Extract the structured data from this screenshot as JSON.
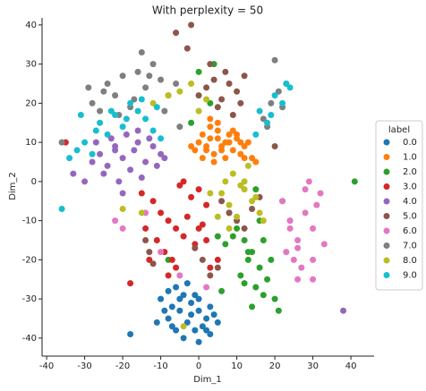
{
  "chart_data": {
    "type": "scatter",
    "title": "With perplexity = 50",
    "x_label": "Dim_1",
    "y_label": "Dim_2",
    "legend_title": "label",
    "legend_position": "right",
    "xlim": [
      -41.2,
      46.1
    ],
    "ylim": [
      -44.6,
      41.8
    ],
    "xticks": [
      -40,
      -30,
      -20,
      -10,
      0,
      10,
      20,
      30,
      40
    ],
    "yticks": [
      -40,
      -30,
      -20,
      -10,
      0,
      10,
      20,
      30,
      40
    ],
    "series": [
      {
        "name": "0.0",
        "color": "#1f77b4",
        "x": [
          -10,
          -8,
          -6,
          -4,
          -2,
          0,
          2,
          4,
          -9,
          -7,
          -5,
          -3,
          -1,
          1,
          3,
          -11,
          -6,
          -4,
          -2,
          0,
          2,
          -8,
          -5,
          -1,
          3,
          -18,
          -3,
          -7,
          5,
          0
        ],
        "values": [
          -30,
          -28,
          -27,
          -29,
          -31,
          -33,
          -35,
          -34,
          -33,
          -32,
          -30,
          -36,
          -38,
          -37,
          -32,
          -36,
          -38,
          -40,
          -34,
          -30,
          -38,
          -35,
          -33,
          -29,
          -39,
          -39,
          -26,
          -37,
          -36,
          -41
        ]
      },
      {
        "name": "1.0",
        "color": "#ff7f0e",
        "x": [
          -2,
          0,
          1,
          2,
          3,
          4,
          5,
          6,
          7,
          8,
          9,
          10,
          11,
          12,
          13,
          14,
          15,
          1,
          3,
          5,
          7,
          9,
          11,
          -1,
          2,
          4,
          6,
          8,
          10,
          12,
          3,
          5
        ],
        "values": [
          9,
          10,
          12,
          8,
          11,
          7,
          13,
          9,
          10,
          12,
          8,
          11,
          7,
          9,
          10,
          6,
          5,
          6,
          14,
          11,
          6,
          13,
          10,
          8,
          9,
          5,
          8,
          10,
          12,
          6,
          16,
          15
        ]
      },
      {
        "name": "2.0",
        "color": "#2ca02c",
        "x": [
          10,
          12,
          14,
          16,
          18,
          13,
          15,
          17,
          11,
          9,
          7,
          19,
          20,
          14,
          12,
          16,
          5,
          8,
          3,
          0,
          -2,
          4,
          21,
          22,
          41,
          15,
          17,
          13,
          6,
          -8
        ],
        "values": [
          -12,
          -15,
          -18,
          -22,
          -25,
          -20,
          -27,
          -29,
          -24,
          -14,
          -16,
          -20,
          -30,
          -32,
          -26,
          -10,
          -14,
          -8,
          20,
          28,
          15,
          30,
          -33,
          -5,
          0,
          -2,
          -15,
          -18,
          -28,
          -20
        ]
      },
      {
        "name": "3.0",
        "color": "#d62728",
        "x": [
          -12,
          -10,
          -8,
          -6,
          -4,
          -2,
          0,
          2,
          -11,
          -9,
          -7,
          -5,
          -3,
          -1,
          1,
          -14,
          -13,
          -6,
          -4,
          0,
          3,
          -35,
          -18,
          -8,
          5,
          2,
          -15
        ],
        "values": [
          -5,
          -8,
          -10,
          -12,
          -14,
          -4,
          -2,
          -6,
          -15,
          -18,
          -20,
          -1,
          -9,
          -16,
          -11,
          -12,
          -20,
          -22,
          0,
          -12,
          -22,
          10,
          -26,
          -24,
          -20,
          -15,
          -3
        ]
      },
      {
        "name": "4.0",
        "color": "#9467bd",
        "x": [
          -28,
          -26,
          -24,
          -22,
          -20,
          -18,
          -16,
          -14,
          -12,
          -10,
          -27,
          -25,
          -23,
          -21,
          -19,
          -17,
          -15,
          -13,
          -11,
          -9,
          -30,
          -20,
          -16,
          38,
          -33,
          -22
        ],
        "values": [
          5,
          7,
          4,
          8,
          6,
          3,
          10,
          5,
          9,
          7,
          10,
          2,
          11,
          0,
          12,
          8,
          1,
          11,
          4,
          6,
          0,
          -3,
          13,
          -33,
          2,
          9
        ]
      },
      {
        "name": "5.0",
        "color": "#8c564b",
        "x": [
          0,
          2,
          4,
          6,
          8,
          10,
          12,
          3,
          7,
          11,
          5,
          9,
          -14,
          -13,
          -12,
          6,
          8,
          10,
          12,
          14,
          1,
          3,
          5,
          -2,
          -6,
          20,
          -3,
          -1,
          16
        ],
        "values": [
          22,
          24,
          26,
          21,
          25,
          23,
          27,
          30,
          28,
          20,
          19,
          17,
          -15,
          -18,
          -21,
          -5,
          -8,
          -10,
          -12,
          -7,
          -20,
          -24,
          -22,
          40,
          38,
          9,
          34,
          -17,
          -4
        ]
      },
      {
        "name": "6.0",
        "color": "#e377c2",
        "x": [
          22,
          24,
          26,
          28,
          30,
          32,
          23,
          25,
          27,
          29,
          31,
          33,
          24,
          28,
          30,
          26,
          -22,
          -10,
          -5,
          2,
          -14,
          -20,
          30,
          26,
          24
        ],
        "values": [
          -5,
          -10,
          -15,
          -8,
          -12,
          -3,
          -18,
          -20,
          -22,
          0,
          -6,
          -16,
          -12,
          -2,
          -20,
          -25,
          -10,
          -18,
          -24,
          -27,
          -8,
          -12,
          -25,
          -17,
          -10
        ]
      },
      {
        "name": "7.0",
        "color": "#7f7f7f",
        "x": [
          -28,
          -26,
          -24,
          -22,
          -20,
          -18,
          -16,
          -14,
          -12,
          -10,
          -8,
          -6,
          -25,
          -21,
          -17,
          -13,
          -9,
          17,
          19,
          21,
          23,
          18,
          20,
          22,
          -15,
          -5,
          -36,
          -29
        ],
        "values": [
          20,
          18,
          25,
          22,
          27,
          19,
          28,
          24,
          30,
          26,
          22,
          25,
          23,
          17,
          21,
          27,
          18,
          16,
          20,
          23,
          25,
          14,
          31,
          19,
          33,
          14,
          10,
          24
        ]
      },
      {
        "name": "8.0",
        "color": "#bcbd22",
        "x": [
          6,
          8,
          10,
          12,
          14,
          16,
          7,
          9,
          11,
          13,
          15,
          17,
          5,
          8,
          12,
          -12,
          -8,
          -5,
          -2,
          0,
          2,
          -15,
          -20,
          -4,
          3
        ],
        "values": [
          -3,
          -6,
          -9,
          -2,
          -5,
          -8,
          0,
          2,
          -1,
          4,
          -4,
          -10,
          -9,
          -12,
          0,
          20,
          22,
          23,
          25,
          18,
          21,
          -8,
          -7,
          -37,
          -3
        ]
      },
      {
        "name": "9.0",
        "color": "#17becf",
        "x": [
          -34,
          -32,
          -30,
          -28,
          -26,
          -24,
          -22,
          -20,
          -18,
          -16,
          -14,
          -12,
          -10,
          -31,
          -27,
          -23,
          -19,
          -15,
          16,
          18,
          20,
          22,
          24,
          15,
          19,
          23,
          -36,
          -11
        ],
        "values": [
          6,
          8,
          10,
          7,
          15,
          12,
          17,
          14,
          20,
          18,
          16,
          13,
          11,
          17,
          13,
          18,
          16,
          21,
          18,
          15,
          22,
          20,
          24,
          12,
          17,
          25,
          -7,
          19
        ]
      }
    ]
  }
}
